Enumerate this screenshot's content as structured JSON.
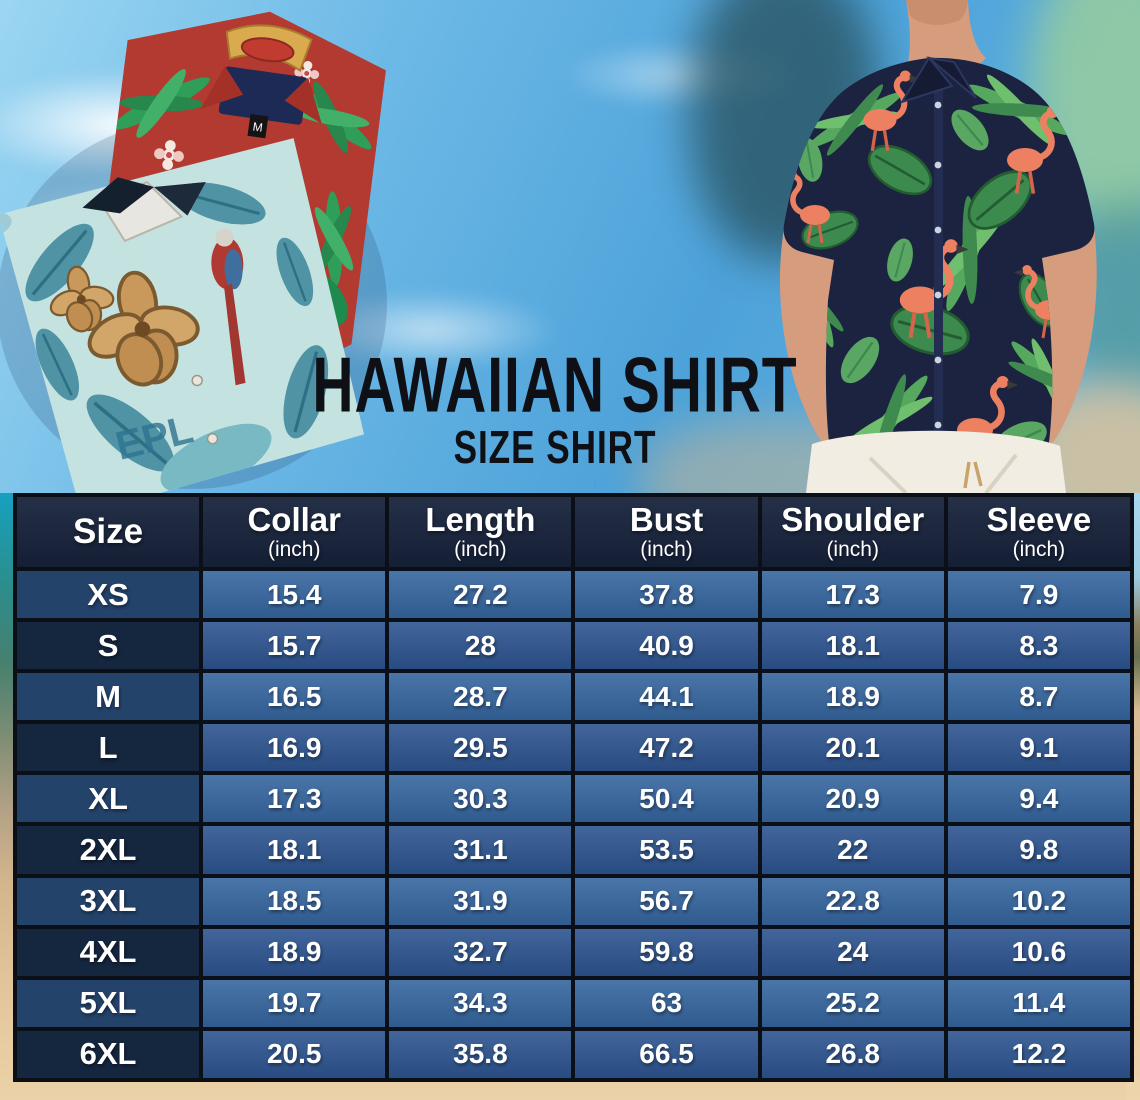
{
  "header": {
    "title": "HAWAIIAN SHIRT",
    "subtitle": "SIZE SHIRT"
  },
  "photos": {
    "shirt_tag_size": "M",
    "teal_shirt_print": "EPL"
  },
  "chart_data": {
    "type": "table",
    "columns": [
      {
        "label": "Size",
        "unit": ""
      },
      {
        "label": "Collar",
        "unit": "(inch)"
      },
      {
        "label": "Length",
        "unit": "(inch)"
      },
      {
        "label": "Bust",
        "unit": "(inch)"
      },
      {
        "label": "Shoulder",
        "unit": "(inch)"
      },
      {
        "label": "Sleeve",
        "unit": "(inch)"
      }
    ],
    "rows": [
      {
        "size": "XS",
        "values": [
          "15.4",
          "27.2",
          "37.8",
          "17.3",
          "7.9"
        ]
      },
      {
        "size": "S",
        "values": [
          "15.7",
          "28",
          "40.9",
          "18.1",
          "8.3"
        ]
      },
      {
        "size": "M",
        "values": [
          "16.5",
          "28.7",
          "44.1",
          "18.9",
          "8.7"
        ]
      },
      {
        "size": "L",
        "values": [
          "16.9",
          "29.5",
          "47.2",
          "20.1",
          "9.1"
        ]
      },
      {
        "size": "XL",
        "values": [
          "17.3",
          "30.3",
          "50.4",
          "20.9",
          "9.4"
        ]
      },
      {
        "size": "2XL",
        "values": [
          "18.1",
          "31.1",
          "53.5",
          "22",
          "9.8"
        ]
      },
      {
        "size": "3XL",
        "values": [
          "18.5",
          "31.9",
          "56.7",
          "22.8",
          "10.2"
        ]
      },
      {
        "size": "4XL",
        "values": [
          "18.9",
          "32.7",
          "59.8",
          "24",
          "10.6"
        ]
      },
      {
        "size": "5XL",
        "values": [
          "19.7",
          "34.3",
          "63",
          "25.2",
          "11.4"
        ]
      },
      {
        "size": "6XL",
        "values": [
          "20.5",
          "35.8",
          "66.5",
          "26.8",
          "12.2"
        ]
      }
    ]
  },
  "colors": {
    "header_bg": "#17233c",
    "row_light_bg": "#36659f",
    "row_dark_bg": "#2d5590",
    "size_light_bg": "#24436b",
    "size_dark_bg": "#15263f",
    "table_border": "#0b0f18",
    "title_text": "#0e1016",
    "sky_blue": "#5aaede",
    "sand": "#e2c49a",
    "model_shirt_navy": "#1b2340",
    "red_shirt": "#b23a31",
    "teal_shirt": "#c4e2e0"
  }
}
